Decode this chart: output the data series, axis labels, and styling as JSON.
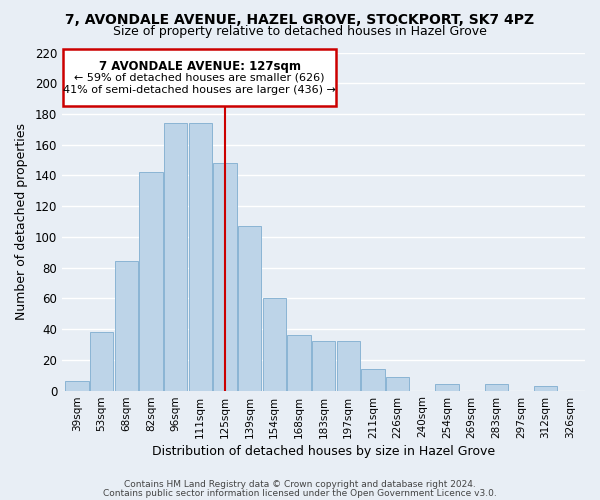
{
  "title1": "7, AVONDALE AVENUE, HAZEL GROVE, STOCKPORT, SK7 4PZ",
  "title2": "Size of property relative to detached houses in Hazel Grove",
  "xlabel": "Distribution of detached houses by size in Hazel Grove",
  "ylabel": "Number of detached properties",
  "categories": [
    "39sqm",
    "53sqm",
    "68sqm",
    "82sqm",
    "96sqm",
    "111sqm",
    "125sqm",
    "139sqm",
    "154sqm",
    "168sqm",
    "183sqm",
    "197sqm",
    "211sqm",
    "226sqm",
    "240sqm",
    "254sqm",
    "269sqm",
    "283sqm",
    "297sqm",
    "312sqm",
    "326sqm"
  ],
  "values": [
    6,
    38,
    84,
    142,
    174,
    174,
    148,
    107,
    60,
    36,
    32,
    32,
    14,
    9,
    0,
    4,
    0,
    4,
    0,
    3,
    0
  ],
  "highlight_index": 6,
  "bar_color_normal": "#bdd4e8",
  "property_label": "7 AVONDALE AVENUE: 127sqm",
  "annotation_line1": "← 59% of detached houses are smaller (626)",
  "annotation_line2": "41% of semi-detached houses are larger (436) →",
  "footer1": "Contains HM Land Registry data © Crown copyright and database right 2024.",
  "footer2": "Contains public sector information licensed under the Open Government Licence v3.0.",
  "ylim": [
    0,
    220
  ],
  "yticks": [
    0,
    20,
    40,
    60,
    80,
    100,
    120,
    140,
    160,
    180,
    200,
    220
  ],
  "background_color": "#e8eef5",
  "plot_background": "#e8eef5",
  "grid_color": "#ffffff",
  "bar_edge_color": "#8ab4d4",
  "vline_color": "#cc0000",
  "box_edge_color": "#cc0000"
}
